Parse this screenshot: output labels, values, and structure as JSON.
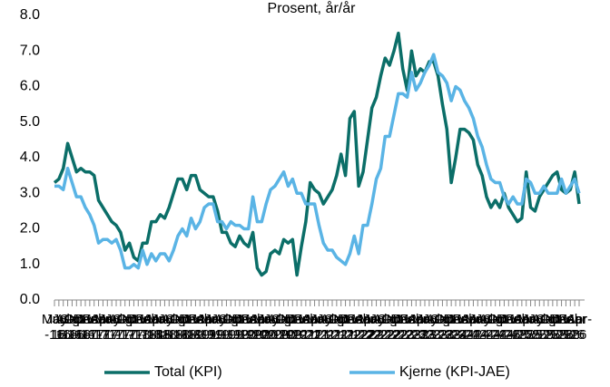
{
  "chart_data": {
    "type": "line",
    "title": "Prosent, år/år",
    "categories": [
      "May-16",
      "Jun-16",
      "Jul-16",
      "Aug-16",
      "Sep-16",
      "Oct-16",
      "Nov-16",
      "Dec-16",
      "Jan-17",
      "Feb-17",
      "Mar-17",
      "Apr-17",
      "May-17",
      "Jun-17",
      "Jul-17",
      "Aug-17",
      "Sep-17",
      "Oct-17",
      "Nov-17",
      "Dec-17",
      "Jan-18",
      "Feb-18",
      "Mar-18",
      "Apr-18",
      "May-18",
      "Jun-18",
      "Jul-18",
      "Aug-18",
      "Sep-18",
      "Oct-18",
      "Nov-18",
      "Dec-18",
      "Jan-19",
      "Feb-19",
      "Mar-19",
      "Apr-19",
      "May-19",
      "Jun-19",
      "Jul-19",
      "Aug-19",
      "Sep-19",
      "Oct-19",
      "Nov-19",
      "Dec-19",
      "Jan-20",
      "Feb-20",
      "Mar-20",
      "Apr-20",
      "May-20",
      "Jun-20",
      "Jul-20",
      "Aug-20",
      "Sep-20",
      "Oct-20",
      "Nov-20",
      "Dec-20",
      "Jan-21",
      "Feb-21",
      "Mar-21",
      "Apr-21",
      "May-21",
      "Jun-21",
      "Jul-21",
      "Aug-21",
      "Sep-21",
      "Oct-21",
      "Nov-21",
      "Dec-21",
      "Jan-22",
      "Feb-22",
      "Mar-22",
      "Apr-22",
      "May-22",
      "Jun-22",
      "Jul-22",
      "Aug-22",
      "Sep-22",
      "Oct-22",
      "Nov-22",
      "Dec-22",
      "Jan-23",
      "Feb-23",
      "Mar-23",
      "Apr-23",
      "May-23",
      "Jun-23",
      "Jul-23",
      "Aug-23",
      "Sep-23",
      "Oct-23",
      "Nov-23",
      "Dec-23",
      "Jan-24",
      "Feb-24",
      "Mar-24",
      "Apr-24",
      "May-24",
      "Jun-24",
      "Jul-24",
      "Aug-24",
      "Sep-24",
      "Oct-24",
      "Nov-24",
      "Dec-24",
      "Jan-25",
      "Feb-25",
      "Mar-25",
      "Apr-25",
      "May-25",
      "Jun-25",
      "Jul-25",
      "Aug-25",
      "Sep-25",
      "Oct-25",
      "Nov-25",
      "Dec-25",
      "Jan-26",
      "Feb-26",
      "Mar-26",
      "Apr-26"
    ],
    "series": [
      {
        "name": "Total (KPI)",
        "color": "#0b6e68",
        "values": [
          3.3,
          3.4,
          3.7,
          4.4,
          4.0,
          3.6,
          3.7,
          3.6,
          3.6,
          3.5,
          2.8,
          2.6,
          2.4,
          2.2,
          2.1,
          1.9,
          1.4,
          1.6,
          1.2,
          1.1,
          1.6,
          1.6,
          2.2,
          2.2,
          2.4,
          2.3,
          2.6,
          3.0,
          3.4,
          3.4,
          3.1,
          3.5,
          3.5,
          3.1,
          3.0,
          2.9,
          2.9,
          2.5,
          1.9,
          1.9,
          1.6,
          1.5,
          1.8,
          1.6,
          1.5,
          1.9,
          0.9,
          0.7,
          0.8,
          1.3,
          1.4,
          1.3,
          1.7,
          1.6,
          1.7,
          0.7,
          1.5,
          2.2,
          3.3,
          3.1,
          3.0,
          2.7,
          2.9,
          3.1,
          3.5,
          4.1,
          3.5,
          5.1,
          5.3,
          3.2,
          3.6,
          4.5,
          5.4,
          5.7,
          6.3,
          6.8,
          6.6,
          7.0,
          7.5,
          6.5,
          5.9,
          7.0,
          6.3,
          6.5,
          6.4,
          6.7,
          6.7,
          6.3,
          5.5,
          4.8,
          3.3,
          4.0,
          4.8,
          4.8,
          4.7,
          4.5,
          3.8,
          3.5,
          2.9,
          2.6,
          2.8,
          2.6,
          3.0,
          2.6,
          2.4,
          2.2,
          2.3,
          3.6,
          2.6,
          2.5,
          2.9,
          3.1,
          3.3,
          3.5,
          3.6,
          3.1,
          3.0,
          3.1,
          3.6,
          2.7
        ]
      },
      {
        "name": "Kjerne (KPI-JAE)",
        "color": "#5ab4e5",
        "values": [
          3.2,
          3.2,
          3.1,
          3.7,
          3.3,
          2.9,
          2.9,
          2.6,
          2.4,
          2.1,
          1.6,
          1.7,
          1.7,
          1.6,
          1.7,
          1.4,
          0.9,
          0.9,
          1.0,
          0.9,
          1.4,
          1.0,
          1.3,
          1.1,
          1.3,
          1.3,
          1.1,
          1.4,
          1.8,
          2.0,
          1.8,
          2.3,
          2.0,
          2.2,
          2.6,
          2.7,
          2.7,
          2.2,
          2.2,
          2.0,
          2.2,
          2.1,
          2.1,
          2.0,
          2.0,
          2.9,
          2.2,
          2.2,
          2.7,
          3.1,
          3.2,
          3.4,
          3.6,
          3.2,
          3.4,
          3.0,
          3.0,
          2.7,
          2.7,
          2.7,
          2.1,
          1.6,
          1.4,
          1.4,
          1.2,
          1.1,
          1.0,
          1.3,
          1.8,
          1.3,
          2.1,
          2.1,
          2.7,
          3.4,
          3.7,
          4.6,
          4.6,
          5.2,
          5.8,
          5.8,
          5.7,
          6.4,
          5.9,
          6.1,
          6.4,
          6.6,
          6.9,
          6.4,
          6.3,
          6.1,
          5.6,
          6.0,
          5.9,
          5.6,
          5.4,
          5.1,
          4.6,
          4.3,
          3.8,
          3.4,
          3.3,
          3.3,
          2.9,
          2.7,
          2.9,
          2.7,
          2.7,
          3.4,
          3.3,
          3.0,
          3.0,
          3.2,
          3.0,
          3.0,
          3.0,
          3.4,
          3.0,
          3.2,
          3.4,
          3.0
        ]
      }
    ],
    "ylim": [
      0,
      8
    ],
    "yticks": [
      {
        "value": 0,
        "label": "0.0"
      },
      {
        "value": 1,
        "label": "1.0"
      },
      {
        "value": 2,
        "label": "2.0"
      },
      {
        "value": 3,
        "label": "3.0"
      },
      {
        "value": 4,
        "label": "4.0"
      },
      {
        "value": 5,
        "label": "5.0"
      },
      {
        "value": 6,
        "label": "6.0"
      },
      {
        "value": 7,
        "label": "7.0"
      },
      {
        "value": 8,
        "label": "8.0"
      }
    ],
    "grid": false,
    "legend": "bottom"
  }
}
